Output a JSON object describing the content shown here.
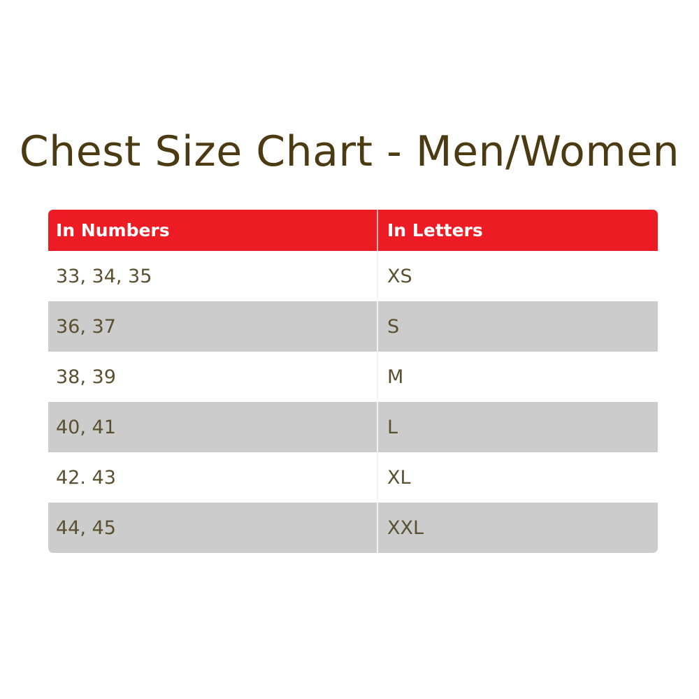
{
  "title": "Chest Size Chart - Men/Women",
  "colors": {
    "header": "#ed1c24",
    "stripe": "#cccccc",
    "text": "#5a5030",
    "title": "#4b3a12"
  },
  "table": {
    "headers": [
      "In Numbers",
      "In Letters"
    ],
    "rows": [
      [
        "33, 34, 35",
        "XS"
      ],
      [
        "36, 37",
        "S"
      ],
      [
        "38, 39",
        "M"
      ],
      [
        "40, 41",
        "L"
      ],
      [
        "42. 43",
        "XL"
      ],
      [
        "44, 45",
        "XXL"
      ]
    ]
  }
}
